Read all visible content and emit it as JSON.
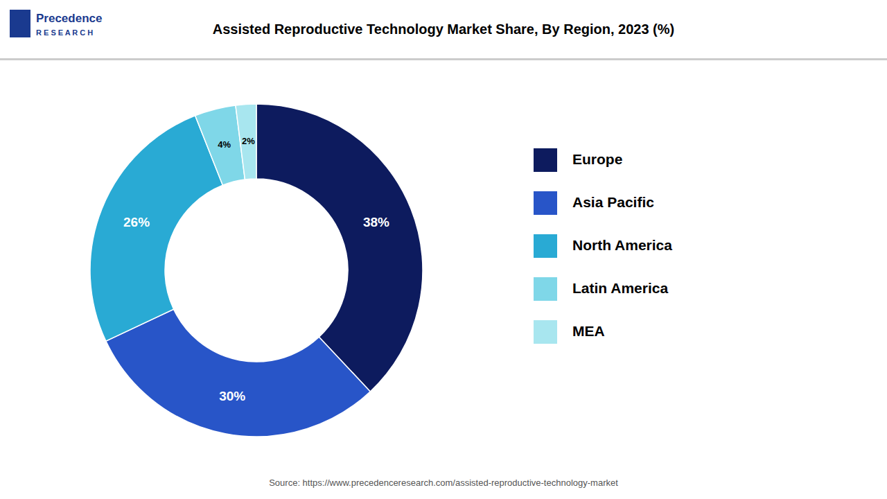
{
  "chart_data": {
    "type": "donut",
    "title": "Assisted Reproductive Technology Market Share, By Region, 2023 (%)",
    "categories": [
      "Europe",
      "Asia Pacific",
      "North America",
      "Latin America",
      "MEA"
    ],
    "values": [
      38,
      30,
      26,
      4,
      2
    ],
    "value_labels": [
      "38%",
      "30%",
      "26%",
      "4%",
      "2%"
    ],
    "colors": [
      "#0d1b5e",
      "#2855c8",
      "#29aad4",
      "#7fd7e8",
      "#a8e6ef"
    ],
    "data_labels": true,
    "legend": "right",
    "annotations": [
      "Source: https://www.precedenceresearch.com/assisted-reproductive-technology-market",
      "Precedence",
      "R E S E A R C H"
    ]
  }
}
